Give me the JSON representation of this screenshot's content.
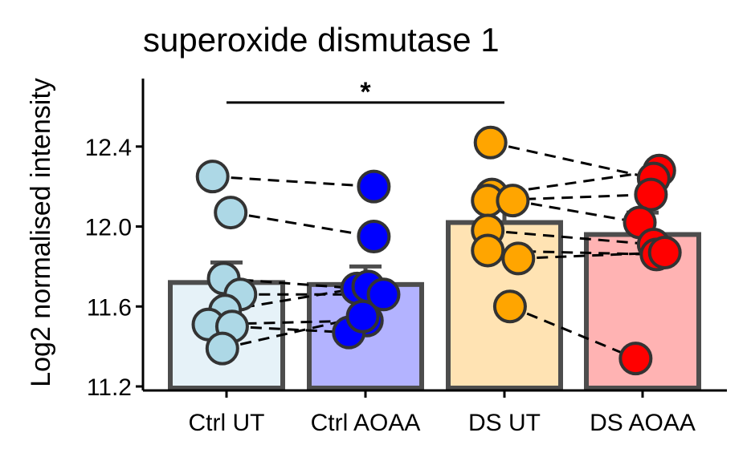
{
  "chart_data": {
    "type": "bar",
    "title": "superoxide dismutase 1",
    "xlabel": "",
    "ylabel": "Log2 normalised intensity",
    "categories": [
      "Ctrl UT",
      "Ctrl AOAA",
      "DS UT",
      "DS AOAA"
    ],
    "yticks": [
      "11.2",
      "11.6",
      "12.0",
      "12.4"
    ],
    "ylim": [
      11.18,
      12.74
    ],
    "grid": false,
    "legend": "none",
    "bars": [
      {
        "category": "Ctrl UT",
        "mean": 11.72,
        "se": 0.1,
        "fill": "#e6f2f8",
        "point_color": "#add8e6"
      },
      {
        "category": "Ctrl AOAA",
        "mean": 11.71,
        "se": 0.09,
        "fill": "#b3b3ff",
        "point_color": "#0000ff"
      },
      {
        "category": "DS UT",
        "mean": 12.02,
        "se": 0.08,
        "fill": "#ffe3b3",
        "point_color": "#ffa500"
      },
      {
        "category": "DS AOAA",
        "mean": 11.96,
        "se": 0.11,
        "fill": "#ffb3b3",
        "point_color": "#ff0000"
      }
    ],
    "points": [
      {
        "group": "Ctrl UT",
        "jitter": -0.1,
        "y": 12.25
      },
      {
        "group": "Ctrl UT",
        "jitter": 0.03,
        "y": 12.07
      },
      {
        "group": "Ctrl UT",
        "jitter": -0.02,
        "y": 11.74
      },
      {
        "group": "Ctrl UT",
        "jitter": 0.1,
        "y": 11.66
      },
      {
        "group": "Ctrl UT",
        "jitter": -0.01,
        "y": 11.58
      },
      {
        "group": "Ctrl UT",
        "jitter": -0.13,
        "y": 11.51
      },
      {
        "group": "Ctrl UT",
        "jitter": 0.04,
        "y": 11.5
      },
      {
        "group": "Ctrl UT",
        "jitter": -0.03,
        "y": 11.39
      },
      {
        "group": "Ctrl AOAA",
        "jitter": 0.06,
        "y": 12.2
      },
      {
        "group": "Ctrl AOAA",
        "jitter": 0.06,
        "y": 11.95
      },
      {
        "group": "Ctrl AOAA",
        "jitter": -0.06,
        "y": 11.69
      },
      {
        "group": "Ctrl AOAA",
        "jitter": 0.02,
        "y": 11.7
      },
      {
        "group": "Ctrl AOAA",
        "jitter": 0.13,
        "y": 11.66
      },
      {
        "group": "Ctrl AOAA",
        "jitter": 0.01,
        "y": 11.53
      },
      {
        "group": "Ctrl AOAA",
        "jitter": -0.12,
        "y": 11.47
      },
      {
        "group": "Ctrl AOAA",
        "jitter": -0.02,
        "y": 11.55
      },
      {
        "group": "DS UT",
        "jitter": -0.1,
        "y": 12.42
      },
      {
        "group": "DS UT",
        "jitter": -0.09,
        "y": 12.16
      },
      {
        "group": "DS UT",
        "jitter": -0.12,
        "y": 12.13
      },
      {
        "group": "DS UT",
        "jitter": 0.06,
        "y": 12.13
      },
      {
        "group": "DS UT",
        "jitter": -0.12,
        "y": 11.98
      },
      {
        "group": "DS UT",
        "jitter": -0.12,
        "y": 11.88
      },
      {
        "group": "DS UT",
        "jitter": 0.1,
        "y": 11.84
      },
      {
        "group": "DS UT",
        "jitter": 0.04,
        "y": 11.6
      },
      {
        "group": "DS AOAA",
        "jitter": 0.12,
        "y": 12.28
      },
      {
        "group": "DS AOAA",
        "jitter": 0.08,
        "y": 12.24
      },
      {
        "group": "DS AOAA",
        "jitter": 0.06,
        "y": 12.16
      },
      {
        "group": "DS AOAA",
        "jitter": -0.02,
        "y": 12.02
      },
      {
        "group": "DS AOAA",
        "jitter": 0.08,
        "y": 11.91
      },
      {
        "group": "DS AOAA",
        "jitter": 0.1,
        "y": 11.86
      },
      {
        "group": "DS AOAA",
        "jitter": 0.16,
        "y": 11.87
      },
      {
        "group": "DS AOAA",
        "jitter": -0.05,
        "y": 11.34
      }
    ],
    "pairs": [
      {
        "from": 0,
        "to": 8
      },
      {
        "from": 1,
        "to": 9
      },
      {
        "from": 2,
        "to": 10
      },
      {
        "from": 3,
        "to": 12
      },
      {
        "from": 4,
        "to": 11
      },
      {
        "from": 5,
        "to": 13
      },
      {
        "from": 6,
        "to": 14
      },
      {
        "from": 7,
        "to": 15
      },
      {
        "from": 16,
        "to": 25
      },
      {
        "from": 17,
        "to": 24
      },
      {
        "from": 18,
        "to": 26
      },
      {
        "from": 19,
        "to": 27
      },
      {
        "from": 20,
        "to": 28
      },
      {
        "from": 21,
        "to": 29
      },
      {
        "from": 22,
        "to": 30
      },
      {
        "from": 23,
        "to": 31
      }
    ],
    "significance": [
      {
        "from": "Ctrl UT",
        "to": "DS UT",
        "y": 12.62,
        "label": "*"
      }
    ],
    "bar_outline_color": "#4d4d4d",
    "point_outline_color": "#333333"
  }
}
